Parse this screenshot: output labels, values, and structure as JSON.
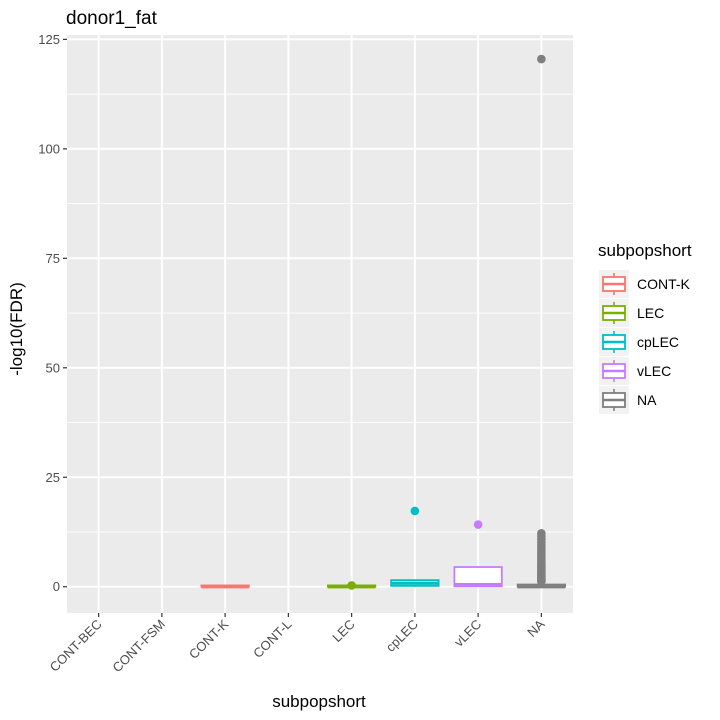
{
  "chart_data": {
    "type": "boxplot",
    "title": "donor1_fat",
    "xlabel": "subpopshort",
    "ylabel": "-log10(FDR)",
    "categories": [
      "CONT-BEC",
      "CONT-FSM",
      "CONT-K",
      "CONT-L",
      "LEC",
      "cpLEC",
      "vLEC",
      "NA"
    ],
    "ylim": [
      -6,
      126
    ],
    "yticks": [
      0,
      25,
      50,
      75,
      100,
      125
    ],
    "grid": true,
    "legend": {
      "title": "subpopshort",
      "position": "right",
      "entries": [
        {
          "label": "CONT-K",
          "color": "#F8766D"
        },
        {
          "label": "LEC",
          "color": "#7CAE00"
        },
        {
          "label": "cpLEC",
          "color": "#00BFC4"
        },
        {
          "label": "vLEC",
          "color": "#C77CFF"
        },
        {
          "label": "NA",
          "color": "#7F7F7F"
        }
      ]
    },
    "boxes": [
      {
        "category": "CONT-K",
        "color": "#F8766D",
        "min": 0,
        "q1": 0,
        "median": 0,
        "q3": 0.3,
        "max": 0.3,
        "outliers": []
      },
      {
        "category": "LEC",
        "color": "#7CAE00",
        "min": 0,
        "q1": 0,
        "median": 0,
        "q3": 0.3,
        "max": 0.3,
        "outliers": [
          0.3
        ]
      },
      {
        "category": "cpLEC",
        "color": "#00BFC4",
        "min": 0,
        "q1": 0.2,
        "median": 0.8,
        "q3": 1.5,
        "max": 1.5,
        "outliers": [
          17.3
        ]
      },
      {
        "category": "vLEC",
        "color": "#C77CFF",
        "min": 0,
        "q1": 0.1,
        "median": 0.5,
        "q3": 4.5,
        "max": 4.5,
        "outliers": [
          14.2
        ]
      },
      {
        "category": "NA",
        "color": "#7F7F7F",
        "min": 0,
        "q1": 0,
        "median": 0,
        "q3": 0.5,
        "max": 1.0,
        "outliers": [
          120.5,
          12.2,
          11.5,
          10.8,
          10.1,
          9.5,
          8.9,
          8.3,
          7.7,
          7.1,
          6.6,
          6.1,
          5.6,
          5.1,
          4.7,
          4.3,
          3.9,
          3.5,
          3.1,
          2.8,
          2.5,
          2.2,
          1.9,
          1.6,
          1.4,
          1.2
        ]
      }
    ]
  }
}
